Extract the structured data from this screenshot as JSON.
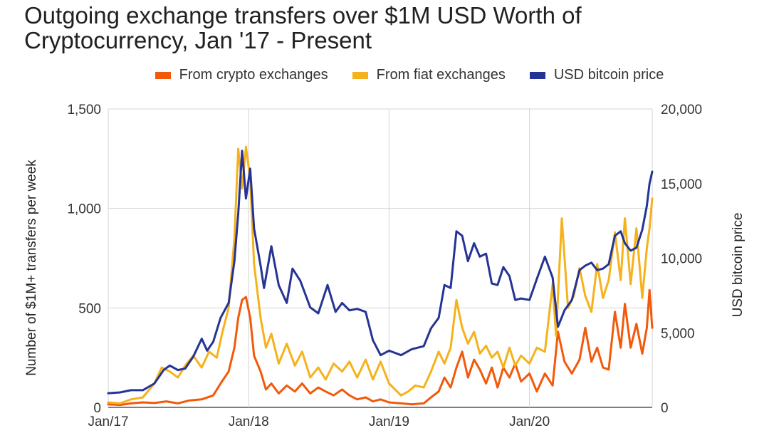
{
  "chart_data": {
    "type": "line",
    "title": "Outgoing exchange transfers over $1M USD Worth of Cryptocurrency, Jan '17 - Present",
    "ylabel": "Number of $1M+ transfers per week",
    "y2label": "USD bitcoin price",
    "ylim": [
      0,
      1500
    ],
    "y2lim": [
      0,
      20000
    ],
    "xlim": [
      "2017-01-01",
      "2020-11-15"
    ],
    "yticks": [
      "0",
      "500",
      "1,000",
      "1,500"
    ],
    "y2ticks": [
      "0",
      "5,000",
      "10,000",
      "15,000",
      "20,000"
    ],
    "xticks": [
      {
        "label": "Jan/17",
        "date": "2017-01-01"
      },
      {
        "label": "Jan/18",
        "date": "2018-01-01"
      },
      {
        "label": "Jan/19",
        "date": "2019-01-01"
      },
      {
        "label": "Jan/20",
        "date": "2020-01-01"
      }
    ],
    "grid": true,
    "legend_position": "top",
    "series": [
      {
        "name": "From crypto exchanges",
        "color": "#f2590a",
        "axis": "left",
        "points": [
          [
            "2017-01-01",
            15
          ],
          [
            "2017-02-01",
            12
          ],
          [
            "2017-03-01",
            20
          ],
          [
            "2017-04-01",
            25
          ],
          [
            "2017-05-01",
            22
          ],
          [
            "2017-06-01",
            30
          ],
          [
            "2017-07-01",
            20
          ],
          [
            "2017-08-01",
            35
          ],
          [
            "2017-09-01",
            40
          ],
          [
            "2017-10-01",
            60
          ],
          [
            "2017-10-20",
            120
          ],
          [
            "2017-11-10",
            180
          ],
          [
            "2017-11-25",
            300
          ],
          [
            "2017-12-05",
            450
          ],
          [
            "2017-12-15",
            540
          ],
          [
            "2017-12-25",
            555
          ],
          [
            "2018-01-05",
            450
          ],
          [
            "2018-01-15",
            260
          ],
          [
            "2018-02-01",
            180
          ],
          [
            "2018-02-15",
            90
          ],
          [
            "2018-03-01",
            120
          ],
          [
            "2018-03-20",
            70
          ],
          [
            "2018-04-10",
            110
          ],
          [
            "2018-05-01",
            80
          ],
          [
            "2018-05-20",
            120
          ],
          [
            "2018-06-10",
            70
          ],
          [
            "2018-07-01",
            100
          ],
          [
            "2018-07-20",
            80
          ],
          [
            "2018-08-10",
            60
          ],
          [
            "2018-09-01",
            90
          ],
          [
            "2018-09-20",
            60
          ],
          [
            "2018-10-10",
            40
          ],
          [
            "2018-11-01",
            50
          ],
          [
            "2018-11-20",
            30
          ],
          [
            "2018-12-10",
            40
          ],
          [
            "2019-01-01",
            25
          ],
          [
            "2019-02-01",
            20
          ],
          [
            "2019-03-01",
            15
          ],
          [
            "2019-04-01",
            20
          ],
          [
            "2019-04-20",
            50
          ],
          [
            "2019-05-10",
            80
          ],
          [
            "2019-05-25",
            150
          ],
          [
            "2019-06-10",
            100
          ],
          [
            "2019-06-25",
            200
          ],
          [
            "2019-07-10",
            280
          ],
          [
            "2019-07-25",
            150
          ],
          [
            "2019-08-10",
            240
          ],
          [
            "2019-08-25",
            190
          ],
          [
            "2019-09-10",
            120
          ],
          [
            "2019-09-25",
            200
          ],
          [
            "2019-10-10",
            100
          ],
          [
            "2019-10-25",
            200
          ],
          [
            "2019-11-10",
            150
          ],
          [
            "2019-11-25",
            220
          ],
          [
            "2019-12-10",
            130
          ],
          [
            "2020-01-01",
            170
          ],
          [
            "2020-01-20",
            80
          ],
          [
            "2020-02-10",
            170
          ],
          [
            "2020-03-01",
            110
          ],
          [
            "2020-03-15",
            380
          ],
          [
            "2020-04-01",
            230
          ],
          [
            "2020-04-20",
            170
          ],
          [
            "2020-05-10",
            240
          ],
          [
            "2020-05-25",
            400
          ],
          [
            "2020-06-10",
            230
          ],
          [
            "2020-06-25",
            300
          ],
          [
            "2020-07-10",
            200
          ],
          [
            "2020-07-25",
            190
          ],
          [
            "2020-08-10",
            480
          ],
          [
            "2020-08-25",
            300
          ],
          [
            "2020-09-05",
            520
          ],
          [
            "2020-09-20",
            300
          ],
          [
            "2020-10-05",
            420
          ],
          [
            "2020-10-20",
            270
          ],
          [
            "2020-11-01",
            400
          ],
          [
            "2020-11-08",
            590
          ],
          [
            "2020-11-15",
            400
          ]
        ]
      },
      {
        "name": "From fiat exchanges",
        "color": "#f5b21b",
        "axis": "left",
        "points": [
          [
            "2017-01-01",
            25
          ],
          [
            "2017-02-01",
            20
          ],
          [
            "2017-03-01",
            40
          ],
          [
            "2017-04-01",
            50
          ],
          [
            "2017-05-01",
            120
          ],
          [
            "2017-05-20",
            200
          ],
          [
            "2017-06-10",
            180
          ],
          [
            "2017-07-01",
            150
          ],
          [
            "2017-07-20",
            210
          ],
          [
            "2017-08-10",
            260
          ],
          [
            "2017-09-01",
            200
          ],
          [
            "2017-09-20",
            280
          ],
          [
            "2017-10-10",
            250
          ],
          [
            "2017-10-25",
            380
          ],
          [
            "2017-11-10",
            500
          ],
          [
            "2017-11-25",
            850
          ],
          [
            "2017-12-05",
            1300
          ],
          [
            "2017-12-15",
            1100
          ],
          [
            "2017-12-25",
            1310
          ],
          [
            "2018-01-05",
            1150
          ],
          [
            "2018-01-15",
            720
          ],
          [
            "2018-02-01",
            450
          ],
          [
            "2018-02-15",
            300
          ],
          [
            "2018-03-01",
            370
          ],
          [
            "2018-03-20",
            220
          ],
          [
            "2018-04-10",
            320
          ],
          [
            "2018-05-01",
            210
          ],
          [
            "2018-05-20",
            280
          ],
          [
            "2018-06-10",
            150
          ],
          [
            "2018-07-01",
            200
          ],
          [
            "2018-07-20",
            140
          ],
          [
            "2018-08-10",
            220
          ],
          [
            "2018-09-01",
            180
          ],
          [
            "2018-09-20",
            230
          ],
          [
            "2018-10-10",
            150
          ],
          [
            "2018-11-01",
            240
          ],
          [
            "2018-11-20",
            140
          ],
          [
            "2018-12-10",
            230
          ],
          [
            "2019-01-01",
            120
          ],
          [
            "2019-02-01",
            60
          ],
          [
            "2019-02-20",
            80
          ],
          [
            "2019-03-10",
            110
          ],
          [
            "2019-04-01",
            100
          ],
          [
            "2019-04-20",
            180
          ],
          [
            "2019-05-10",
            280
          ],
          [
            "2019-05-25",
            220
          ],
          [
            "2019-06-10",
            300
          ],
          [
            "2019-06-25",
            540
          ],
          [
            "2019-07-10",
            400
          ],
          [
            "2019-07-25",
            320
          ],
          [
            "2019-08-10",
            380
          ],
          [
            "2019-08-25",
            270
          ],
          [
            "2019-09-10",
            310
          ],
          [
            "2019-09-25",
            250
          ],
          [
            "2019-10-10",
            280
          ],
          [
            "2019-10-25",
            200
          ],
          [
            "2019-11-10",
            300
          ],
          [
            "2019-11-25",
            210
          ],
          [
            "2019-12-10",
            260
          ],
          [
            "2020-01-01",
            220
          ],
          [
            "2020-01-20",
            300
          ],
          [
            "2020-02-10",
            280
          ],
          [
            "2020-03-01",
            620
          ],
          [
            "2020-03-10",
            360
          ],
          [
            "2020-03-25",
            950
          ],
          [
            "2020-04-10",
            500
          ],
          [
            "2020-04-25",
            560
          ],
          [
            "2020-05-10",
            700
          ],
          [
            "2020-05-25",
            560
          ],
          [
            "2020-06-10",
            480
          ],
          [
            "2020-06-25",
            720
          ],
          [
            "2020-07-10",
            550
          ],
          [
            "2020-07-25",
            640
          ],
          [
            "2020-08-10",
            880
          ],
          [
            "2020-08-25",
            640
          ],
          [
            "2020-09-05",
            950
          ],
          [
            "2020-09-20",
            620
          ],
          [
            "2020-10-05",
            900
          ],
          [
            "2020-10-20",
            550
          ],
          [
            "2020-11-01",
            800
          ],
          [
            "2020-11-08",
            900
          ],
          [
            "2020-11-15",
            1050
          ]
        ]
      },
      {
        "name": "USD bitcoin price",
        "color": "#253494",
        "axis": "right",
        "points": [
          [
            "2017-01-01",
            950
          ],
          [
            "2017-02-01",
            1000
          ],
          [
            "2017-03-01",
            1150
          ],
          [
            "2017-04-01",
            1150
          ],
          [
            "2017-05-01",
            1600
          ],
          [
            "2017-05-25",
            2500
          ],
          [
            "2017-06-10",
            2800
          ],
          [
            "2017-07-01",
            2500
          ],
          [
            "2017-07-20",
            2600
          ],
          [
            "2017-08-10",
            3400
          ],
          [
            "2017-09-01",
            4600
          ],
          [
            "2017-09-15",
            3800
          ],
          [
            "2017-10-01",
            4400
          ],
          [
            "2017-10-20",
            6000
          ],
          [
            "2017-11-10",
            7000
          ],
          [
            "2017-11-25",
            9800
          ],
          [
            "2017-12-05",
            13000
          ],
          [
            "2017-12-15",
            17200
          ],
          [
            "2017-12-25",
            14000
          ],
          [
            "2018-01-05",
            16000
          ],
          [
            "2018-01-15",
            12000
          ],
          [
            "2018-02-01",
            9500
          ],
          [
            "2018-02-10",
            8000
          ],
          [
            "2018-03-01",
            10800
          ],
          [
            "2018-03-20",
            8200
          ],
          [
            "2018-04-10",
            7000
          ],
          [
            "2018-04-25",
            9300
          ],
          [
            "2018-05-15",
            8500
          ],
          [
            "2018-06-10",
            6700
          ],
          [
            "2018-07-01",
            6300
          ],
          [
            "2018-07-25",
            8200
          ],
          [
            "2018-08-15",
            6400
          ],
          [
            "2018-09-01",
            7000
          ],
          [
            "2018-09-20",
            6500
          ],
          [
            "2018-10-10",
            6600
          ],
          [
            "2018-11-01",
            6400
          ],
          [
            "2018-11-20",
            4500
          ],
          [
            "2018-12-10",
            3500
          ],
          [
            "2019-01-01",
            3800
          ],
          [
            "2019-02-01",
            3500
          ],
          [
            "2019-03-01",
            3900
          ],
          [
            "2019-04-01",
            4100
          ],
          [
            "2019-04-20",
            5300
          ],
          [
            "2019-05-10",
            6000
          ],
          [
            "2019-05-25",
            8200
          ],
          [
            "2019-06-10",
            8000
          ],
          [
            "2019-06-25",
            11800
          ],
          [
            "2019-07-10",
            11500
          ],
          [
            "2019-07-25",
            9800
          ],
          [
            "2019-08-10",
            11000
          ],
          [
            "2019-08-25",
            10100
          ],
          [
            "2019-09-10",
            10300
          ],
          [
            "2019-09-25",
            8300
          ],
          [
            "2019-10-10",
            8200
          ],
          [
            "2019-10-25",
            9400
          ],
          [
            "2019-11-10",
            8800
          ],
          [
            "2019-11-25",
            7200
          ],
          [
            "2019-12-10",
            7300
          ],
          [
            "2020-01-01",
            7200
          ],
          [
            "2020-01-20",
            8600
          ],
          [
            "2020-02-10",
            10100
          ],
          [
            "2020-03-01",
            8700
          ],
          [
            "2020-03-15",
            5400
          ],
          [
            "2020-04-01",
            6500
          ],
          [
            "2020-04-20",
            7200
          ],
          [
            "2020-05-10",
            9200
          ],
          [
            "2020-05-25",
            9500
          ],
          [
            "2020-06-10",
            9700
          ],
          [
            "2020-06-25",
            9200
          ],
          [
            "2020-07-10",
            9300
          ],
          [
            "2020-07-25",
            9600
          ],
          [
            "2020-08-10",
            11500
          ],
          [
            "2020-08-25",
            11800
          ],
          [
            "2020-09-05",
            11000
          ],
          [
            "2020-09-20",
            10500
          ],
          [
            "2020-10-05",
            10700
          ],
          [
            "2020-10-20",
            11900
          ],
          [
            "2020-11-01",
            13500
          ],
          [
            "2020-11-08",
            15000
          ],
          [
            "2020-11-15",
            15800
          ]
        ]
      }
    ]
  }
}
